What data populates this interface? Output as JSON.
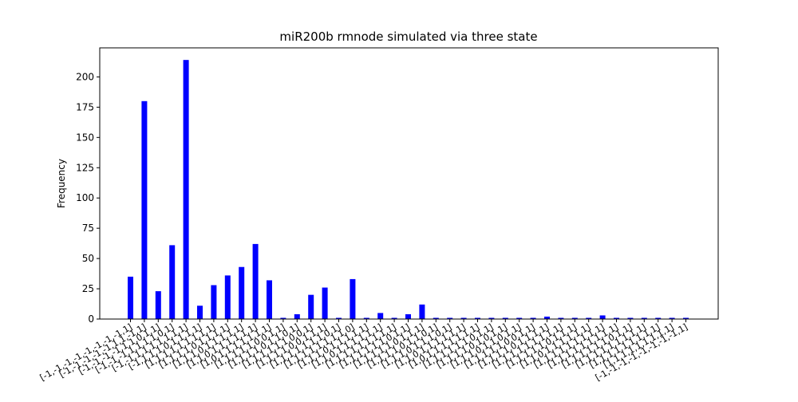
{
  "chart_data": {
    "type": "bar",
    "title": "miR200b rmnode simulated via three state",
    "xlabel": "",
    "ylabel": "Frequency",
    "ylim": [
      0,
      224
    ],
    "yticks": [
      0,
      25,
      50,
      75,
      100,
      125,
      150,
      175,
      200
    ],
    "bar_color": "#0000ff",
    "grid": false,
    "categories": [
      "[-1,-1,-1,-1,-1,-1,-1,-1,1]",
      "[-1,-1,-1,-1,-1,1,1,-1,1]",
      "[-1,-1,-1,-1,1,1,0,1,1]",
      "[-1,-1,-1,1,1,1,1,0,1]",
      "[-1,-1,1,1,1,1,1,1,1]",
      "[-1,1,1,1,0,1,1,1,1]",
      "[1,1,1,1,1,1,1,1,1]",
      "[1,1,1,1,0,1,1,1,1]",
      "[1,1,1,0,1,1,1,1,1]",
      "[1,1,0,1,1,1,1,1,1]",
      "[1,0,1,1,1,1,1,1,1]",
      "[1,1,1,1,1,0,0,1,1]",
      "[1,1,1,1,0,1,1,0,1]",
      "[1,1,1,1,1,1,0,0,1]",
      "[1,1,1,1,0,0,1,1,1]",
      "[1,1,1,1,1,1,1,0,1]",
      "[1,1,1,1,1,1,1,1,0]",
      "[1,1,1,0,1,1,1,1,1]",
      "[1,1,0,1,1,1,1,1,1]",
      "[1,1,1,1,1,1,1,1,1]",
      "[1,1,1,1,1,1,0,1,1]",
      "[1,1,1,1,1,0,1,1,1]",
      "[1,1,1,1,0,1,1,0,1]",
      "[1,1,1,0,1,1,1,0,1]",
      "[1,1,0,1,1,1,1,1,1]",
      "[1,0,1,1,1,1,1,1,1]",
      "[1,1,1,1,1,1,0,1,1]",
      "[1,1,1,1,0,1,0,1,1]",
      "[1,1,1,0,1,1,0,1,1]",
      "[1,1,1,1,1,0,0,1,1]",
      "[1,1,1,1,0,1,1,1,1]",
      "[1,1,1,1,1,1,1,1,1]",
      "[1,1,1,1,1,0,1,1,1]",
      "[1,1,0,1,1,1,1,1,1]",
      "[1,1,1,1,1,1,1,1,1]",
      "[1,1,1,1,1,1,1,1,1]",
      "[1,1,1,1,1,1,0,1,1]",
      "[1,1,1,1,1,1,1,1,1]",
      "[1,1,1,1,1,1,1,1,1]",
      "[1,1,1,1,1,1,1,1,1]",
      "[-1,-1,-1,-1,-1,-1,-1,-1,1]"
    ],
    "values": [
      35,
      180,
      23,
      61,
      214,
      11,
      28,
      36,
      43,
      62,
      32,
      1,
      4,
      20,
      26,
      1,
      33,
      1,
      5,
      1,
      4,
      12,
      1,
      1,
      1,
      1,
      1,
      1,
      1,
      1,
      2,
      1,
      1,
      1,
      3,
      1,
      1,
      1,
      1,
      1,
      1
    ]
  }
}
